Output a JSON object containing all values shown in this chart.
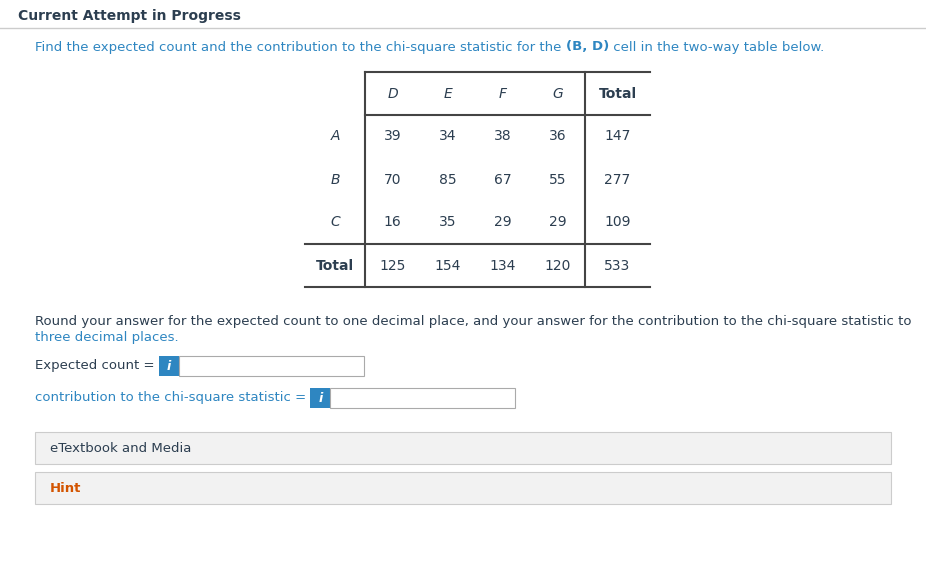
{
  "title_header": "Current Attempt in Progress",
  "col_headers": [
    "D",
    "E",
    "F",
    "G",
    "Total"
  ],
  "row_headers": [
    "A",
    "B",
    "C",
    "Total"
  ],
  "table_data": [
    [
      39,
      34,
      38,
      36,
      147
    ],
    [
      70,
      85,
      67,
      55,
      277
    ],
    [
      16,
      35,
      29,
      29,
      109
    ],
    [
      125,
      154,
      134,
      120,
      533
    ]
  ],
  "round_text_1": "Round your answer for the expected count to one decimal place, and your answer for the contribution to the chi-square statistic to",
  "round_text_2": "three decimal places.",
  "label_expected": "Expected count = ",
  "label_chi": "contribution to the chi-square statistic = ",
  "etextbook_label": "eTextbook and Media",
  "hint_label": "Hint",
  "bg_color": "#ffffff",
  "header_sep_color": "#cccccc",
  "table_line_color": "#444444",
  "blue_color": "#2e86c1",
  "dark_color": "#2c3e50",
  "orange_color": "#d35400",
  "input_border_color": "#aaaaaa",
  "info_btn_color": "#2e86c1",
  "section_bg_color": "#f2f2f2",
  "section_border_color": "#cccccc"
}
